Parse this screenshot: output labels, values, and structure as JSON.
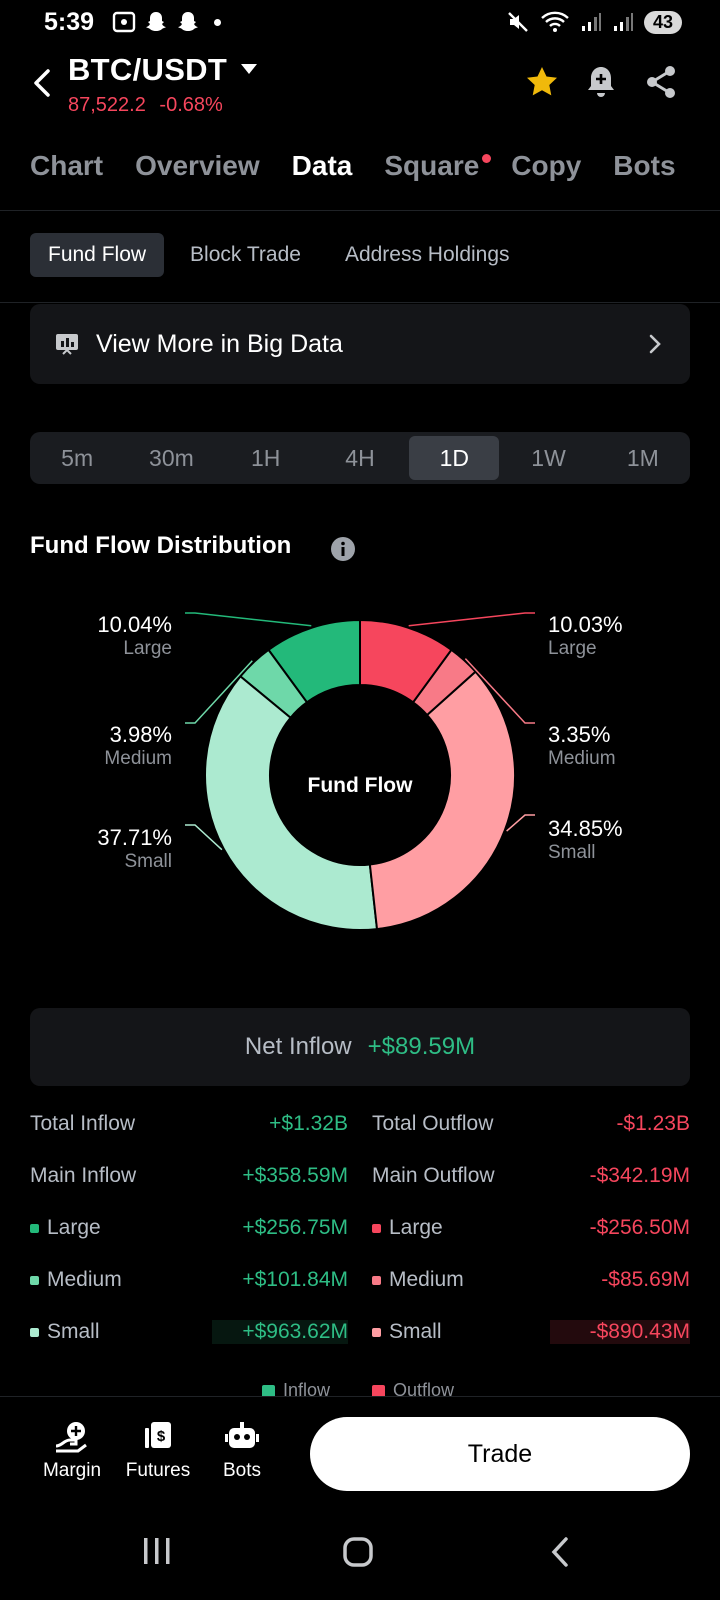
{
  "status_bar": {
    "time": "5:39",
    "battery": "43"
  },
  "header": {
    "pair": "BTC/USDT",
    "price": "87,522.2",
    "change": "-0.68%"
  },
  "tabs": [
    {
      "label": "Chart"
    },
    {
      "label": "Overview"
    },
    {
      "label": "Data",
      "active": true
    },
    {
      "label": "Square",
      "badge": true
    },
    {
      "label": "Copy"
    },
    {
      "label": "Bots"
    }
  ],
  "subtabs": [
    {
      "label": "Fund Flow",
      "active": true
    },
    {
      "label": "Block Trade"
    },
    {
      "label": "Address Holdings"
    }
  ],
  "big_data": {
    "label": "View More in Big Data"
  },
  "time_options": [
    {
      "label": "5m"
    },
    {
      "label": "30m"
    },
    {
      "label": "1H"
    },
    {
      "label": "4H"
    },
    {
      "label": "1D",
      "active": true
    },
    {
      "label": "1W"
    },
    {
      "label": "1M"
    }
  ],
  "section_title": "Fund Flow Distribution",
  "chart_data": {
    "type": "pie",
    "center_label": "Fund Flow",
    "slices": [
      {
        "side": "outflow",
        "category": "Large",
        "value": 10.03,
        "label": "10.03%",
        "color": "#f6465d"
      },
      {
        "side": "outflow",
        "category": "Medium",
        "value": 3.35,
        "label": "3.35%",
        "color": "#f87a87"
      },
      {
        "side": "outflow",
        "category": "Small",
        "value": 34.85,
        "label": "34.85%",
        "color": "#ff9ea3"
      },
      {
        "side": "inflow",
        "category": "Small",
        "value": 37.71,
        "label": "37.71%",
        "color": "#acead0"
      },
      {
        "side": "inflow",
        "category": "Medium",
        "value": 3.98,
        "label": "3.98%",
        "color": "#6ed8a9"
      },
      {
        "side": "inflow",
        "category": "Large",
        "value": 10.04,
        "label": "10.04%",
        "color": "#23b97a"
      }
    ],
    "legend": [
      {
        "label": "Inflow",
        "color": "#2ebd85"
      },
      {
        "label": "Outflow",
        "color": "#f6465d"
      }
    ]
  },
  "net_inflow": {
    "label": "Net Inflow",
    "value": "+$89.59M"
  },
  "flows": {
    "inflow": [
      {
        "label": "Total Inflow",
        "value": "+$1.32B"
      },
      {
        "label": "Main Inflow",
        "value": "+$358.59M"
      },
      {
        "label": "Large",
        "value": "+$256.75M",
        "dot": "#23b97a"
      },
      {
        "label": "Medium",
        "value": "+$101.84M",
        "dot": "#6ed8a9"
      },
      {
        "label": "Small",
        "value": "+$963.62M",
        "dot": "#acead0"
      }
    ],
    "outflow": [
      {
        "label": "Total Outflow",
        "value": "-$1.23B"
      },
      {
        "label": "Main Outflow",
        "value": "-$342.19M"
      },
      {
        "label": "Large",
        "value": "-$256.50M",
        "dot": "#f6465d"
      },
      {
        "label": "Medium",
        "value": "-$85.69M",
        "dot": "#f87a87"
      },
      {
        "label": "Small",
        "value": "-$890.43M",
        "dot": "#ff9ea3"
      }
    ]
  },
  "bottom_nav": [
    {
      "label": "Margin",
      "icon": "margin-icon"
    },
    {
      "label": "Futures",
      "icon": "futures-icon"
    },
    {
      "label": "Bots",
      "icon": "bots-icon"
    }
  ],
  "trade_button": "Trade"
}
